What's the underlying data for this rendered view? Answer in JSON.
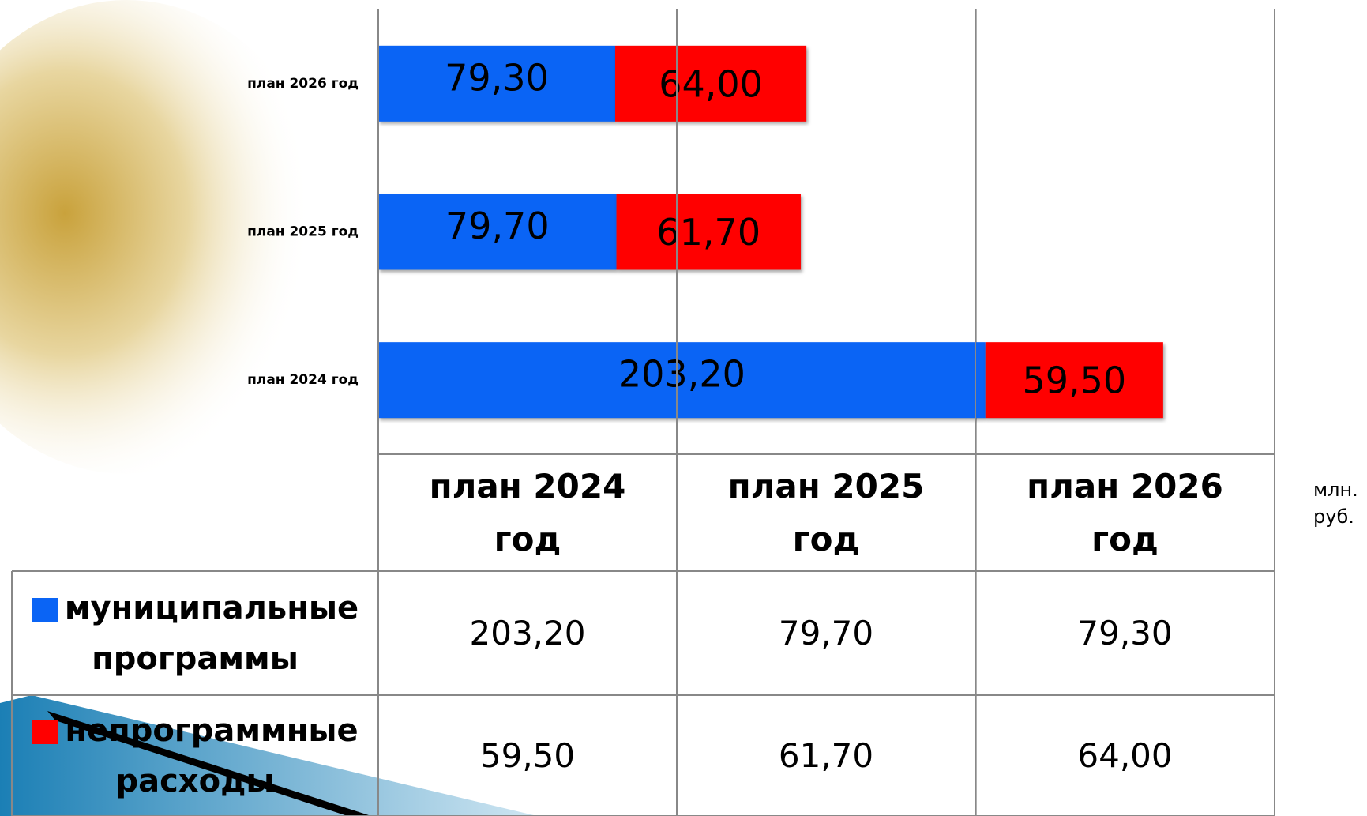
{
  "chart_data": {
    "type": "stacked_bar_horizontal",
    "categories": [
      "план 2024 год",
      "план 2025 год",
      "план 2026 год"
    ],
    "series": [
      {
        "name": "муниципальные программы",
        "color": "#0a64f5",
        "values": [
          203.2,
          79.7,
          79.3
        ],
        "value_labels": [
          "203,20",
          "79,70",
          "79,30"
        ]
      },
      {
        "name": "непрограммные расходы",
        "color": "#ff0000",
        "values": [
          59.5,
          61.7,
          64.0
        ],
        "value_labels": [
          "59,50",
          "61,70",
          "64,00"
        ]
      }
    ],
    "xlim": [
      0,
      300
    ],
    "xticks": [
      0,
      100,
      200,
      300
    ],
    "tick_labels": false,
    "grid": true,
    "unit": "млн. руб."
  }
}
